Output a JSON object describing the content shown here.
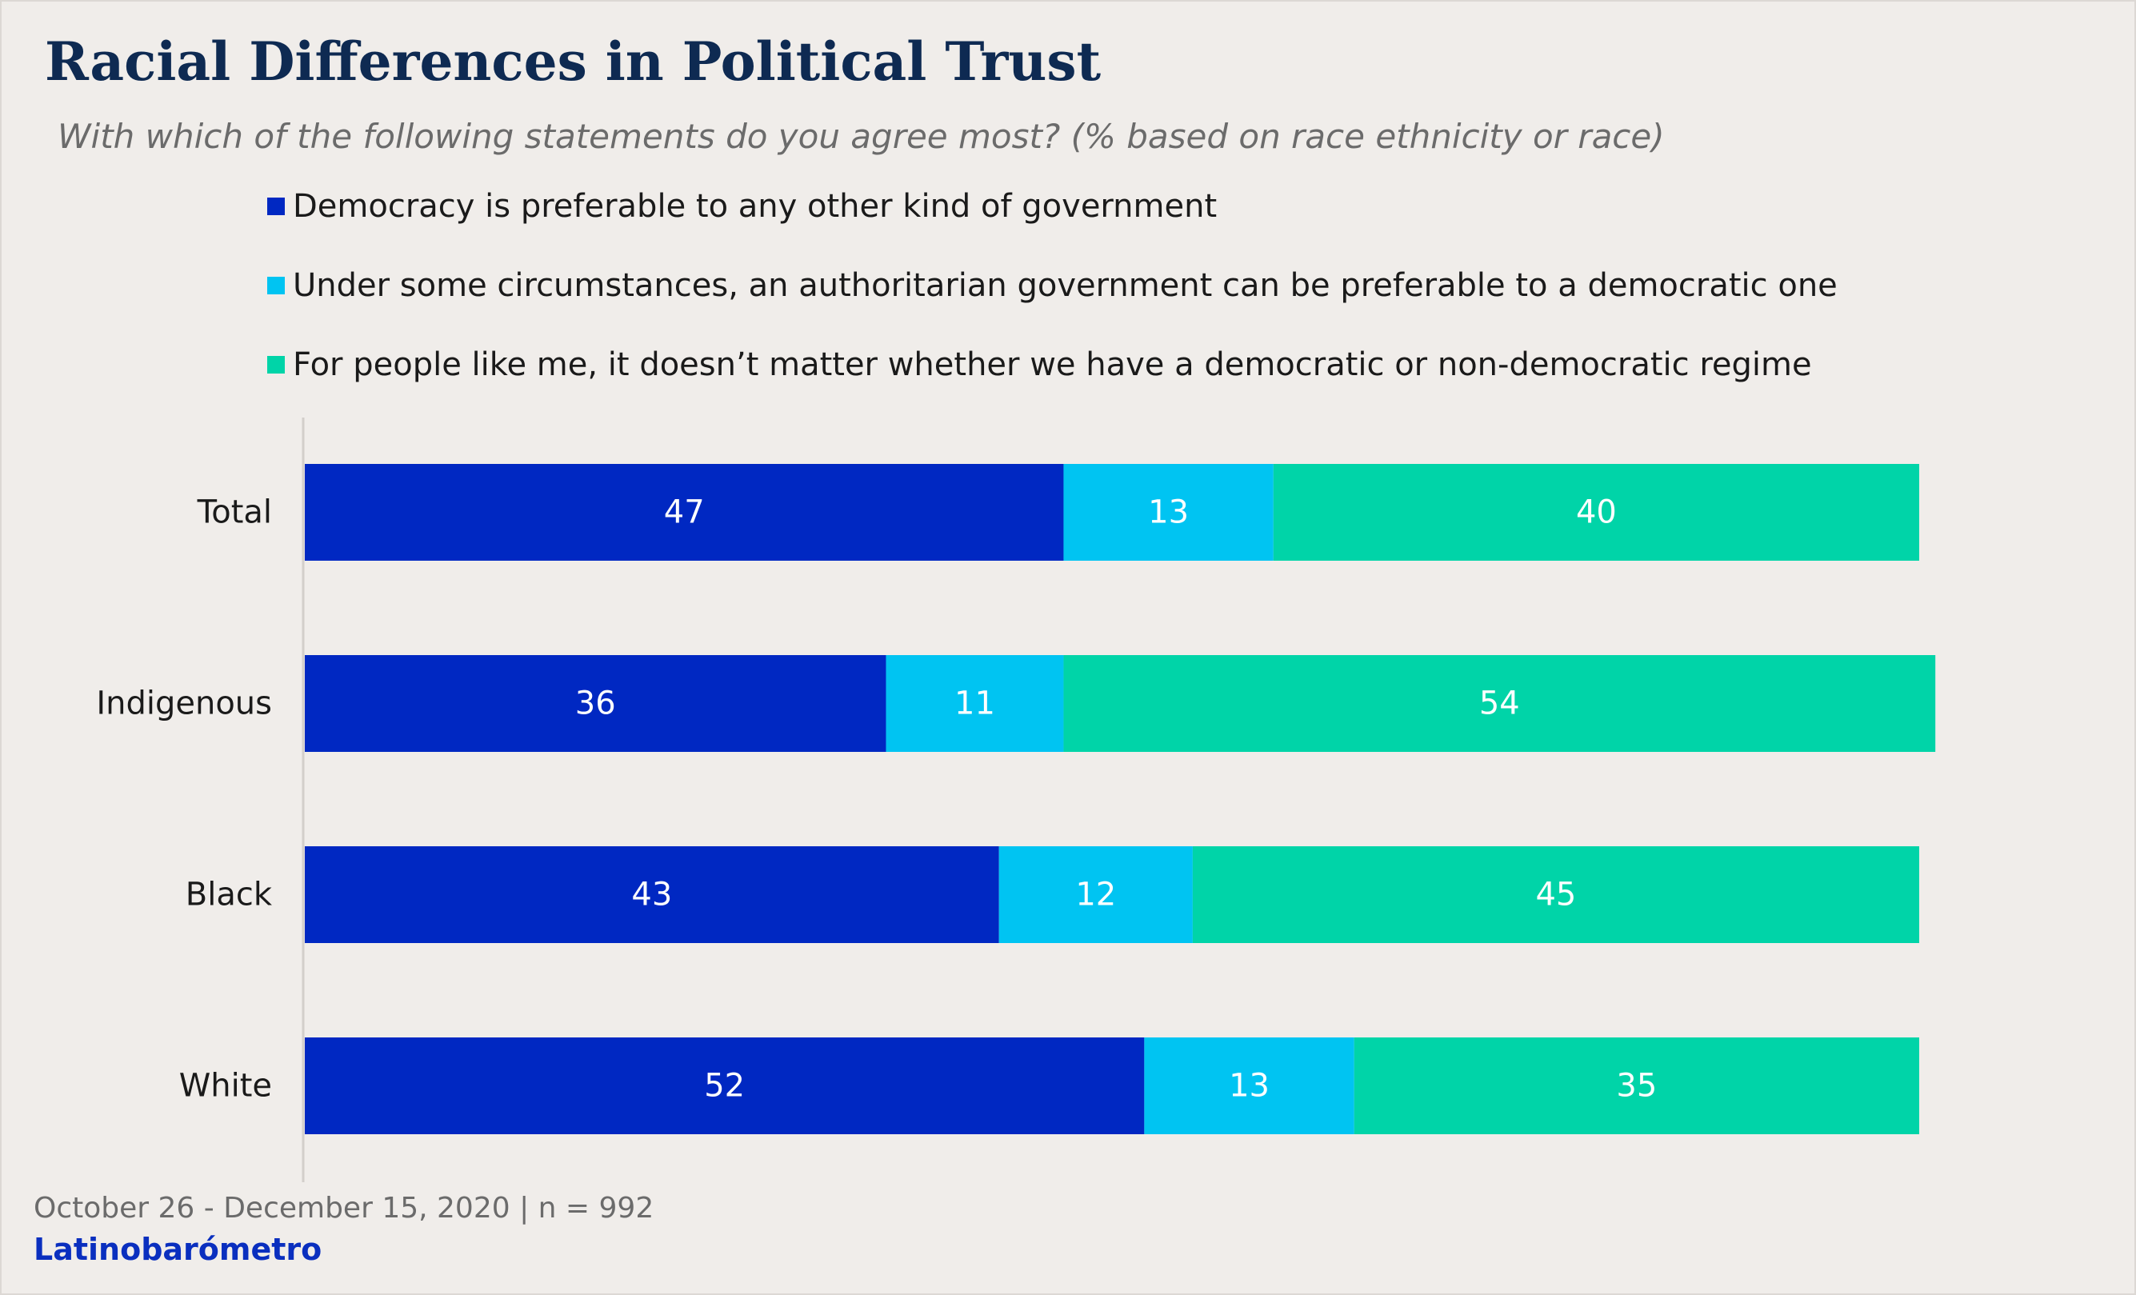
{
  "chart_data": {
    "type": "bar",
    "orientation": "horizontal",
    "stacked": true,
    "title": "Racial Differences in Political Trust",
    "subtitle": "With which of the following statements do you agree most? (% based on race ethnicity or race)",
    "categories": [
      "Total",
      "Indigenous",
      "Black",
      "White"
    ],
    "series": [
      {
        "name": "Democracy is preferable to any other kind of government",
        "color": "#0028c2",
        "values": [
          47,
          36,
          43,
          52
        ]
      },
      {
        "name": "Under some circumstances, an authoritarian government can be preferable to a democratic one",
        "color": "#00c4f2",
        "values": [
          13,
          11,
          12,
          13
        ]
      },
      {
        "name": "For people like me, it doesn’t matter whether we have a democratic or non-democratic regime",
        "color": "#00d4a8",
        "values": [
          40,
          54,
          45,
          35
        ]
      }
    ],
    "xlim": [
      0,
      100
    ],
    "grid": false,
    "legend_position": "top"
  },
  "footer": {
    "date_range": "October 26 - December 15, 2020 | n = 992",
    "source": "Latinobarómetro"
  },
  "colors": {
    "background": "#f0edea",
    "title": "#0e2a52",
    "source": "#0a2fbf"
  }
}
